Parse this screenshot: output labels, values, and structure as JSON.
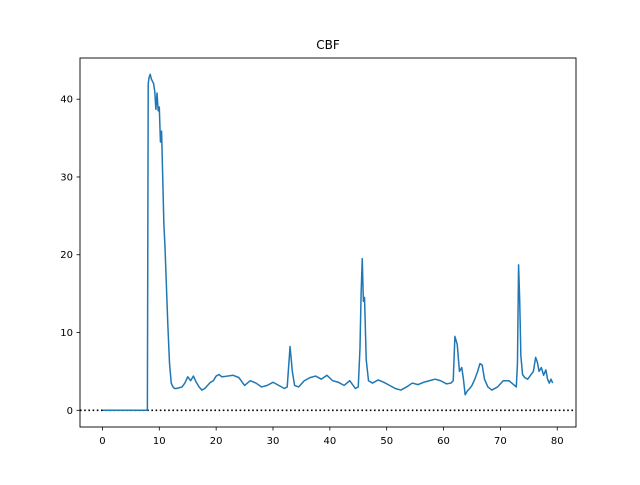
{
  "chart_data": {
    "type": "line",
    "title": "CBF",
    "xlabel": "",
    "ylabel": "",
    "xlim": [
      -3.95,
      83.3
    ],
    "ylim": [
      -2.15,
      45.3
    ],
    "xticks": [
      0,
      10,
      20,
      30,
      40,
      50,
      60,
      70,
      80
    ],
    "yticks": [
      0,
      10,
      20,
      30,
      40
    ],
    "grid": false,
    "line_color": "#1f77b4",
    "reference_line": {
      "y": 0,
      "style": "dotted",
      "color": "#000000"
    },
    "series": [
      {
        "x": [
          0,
          7.9,
          8.05,
          8.2,
          8.4,
          8.6,
          8.8,
          9.0,
          9.2,
          9.4,
          9.6,
          9.8,
          10.0,
          10.2,
          10.4,
          10.6,
          10.8,
          11.0,
          11.2,
          11.5,
          11.8,
          12.1,
          12.4,
          12.7,
          13.0,
          13.5,
          14.0,
          14.5,
          15.0,
          15.5,
          16.0,
          16.5,
          17.0,
          17.5,
          18.0,
          18.5,
          19.0,
          19.5,
          20.0,
          20.5,
          21.0,
          22.0,
          23.0,
          24.0,
          25.0,
          26.0,
          27.0,
          28.0,
          29.0,
          30.0,
          31.0,
          32.0,
          32.5,
          33.0,
          33.4,
          33.8,
          34.5,
          35.5,
          36.5,
          37.5,
          38.5,
          39.5,
          40.5,
          41.5,
          42.5,
          43.5,
          44.5,
          45.0,
          45.3,
          45.5,
          45.7,
          45.9,
          46.1,
          46.4,
          46.8,
          47.5,
          48.5,
          49.5,
          50.5,
          51.5,
          52.5,
          53.5,
          54.5,
          55.5,
          56.5,
          57.5,
          58.5,
          59.5,
          60.5,
          61.3,
          61.7,
          62.0,
          62.4,
          62.8,
          63.2,
          63.5,
          63.8,
          64.2,
          64.6,
          65.0,
          65.5,
          66.0,
          66.4,
          66.8,
          67.2,
          67.8,
          68.5,
          69.5,
          70.5,
          71.5,
          72.5,
          72.8,
          73.0,
          73.2,
          73.4,
          73.6,
          73.9,
          74.3,
          74.8,
          75.3,
          75.8,
          76.2,
          76.5,
          76.8,
          77.2,
          77.6,
          78.0,
          78.3,
          78.6,
          78.9,
          79.2
        ],
        "y": [
          0,
          0,
          42.0,
          42.8,
          43.2,
          42.6,
          42.3,
          42.0,
          41.0,
          38.7,
          40.8,
          38.5,
          39.0,
          34.5,
          35.9,
          30.0,
          24.0,
          21.0,
          17.0,
          11.0,
          6.0,
          3.5,
          3.0,
          2.8,
          2.8,
          2.9,
          3.0,
          3.5,
          4.3,
          3.8,
          4.4,
          3.6,
          3.0,
          2.6,
          2.8,
          3.2,
          3.6,
          3.8,
          4.4,
          4.6,
          4.3,
          4.4,
          4.5,
          4.2,
          3.2,
          3.8,
          3.5,
          3.0,
          3.2,
          3.6,
          3.2,
          2.8,
          3.0,
          8.2,
          5.0,
          3.2,
          3.0,
          3.8,
          4.2,
          4.4,
          4.0,
          4.5,
          3.8,
          3.6,
          3.2,
          3.8,
          2.8,
          3.0,
          8.0,
          15.0,
          19.5,
          14.0,
          14.5,
          6.5,
          3.8,
          3.5,
          3.9,
          3.6,
          3.2,
          2.8,
          2.6,
          3.0,
          3.5,
          3.3,
          3.6,
          3.8,
          4.0,
          3.8,
          3.4,
          3.5,
          3.8,
          9.5,
          8.5,
          5.0,
          5.5,
          4.0,
          2.0,
          2.5,
          2.8,
          3.2,
          4.0,
          5.0,
          6.0,
          5.8,
          4.0,
          3.0,
          2.6,
          3.0,
          3.8,
          3.8,
          3.2,
          3.0,
          6.0,
          18.7,
          14.0,
          7.0,
          4.6,
          4.2,
          4.0,
          4.5,
          5.0,
          6.8,
          6.2,
          5.0,
          5.5,
          4.5,
          5.2,
          4.0,
          3.5,
          4.0,
          3.5
        ]
      }
    ]
  }
}
